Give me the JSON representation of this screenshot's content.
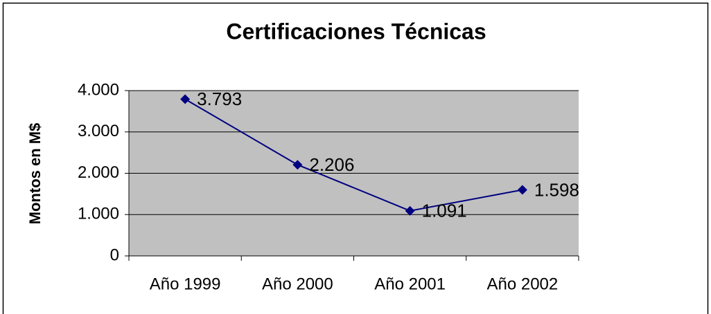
{
  "chart_data": {
    "type": "line",
    "title": "Certificaciones Técnicas",
    "y_label": "Montos en M$",
    "categories": [
      "Año 1999",
      "Año 2000",
      "Año 2001",
      "Año 2002"
    ],
    "values": [
      3793,
      2206,
      1091,
      1598
    ],
    "value_labels": [
      "3.793",
      "2.206",
      "1.091",
      "1.598"
    ],
    "color": "#000080",
    "plot_background": "#c0c0c0",
    "ylim": [
      0,
      4000
    ],
    "yticks": [
      0,
      {
        "value": 1000,
        "label": "1.000"
      },
      {
        "value": 2000,
        "label": "2.000"
      },
      {
        "value": 3000,
        "label": "3.000"
      },
      {
        "value": 4000,
        "label": "4.000"
      }
    ],
    "grid": true
  }
}
